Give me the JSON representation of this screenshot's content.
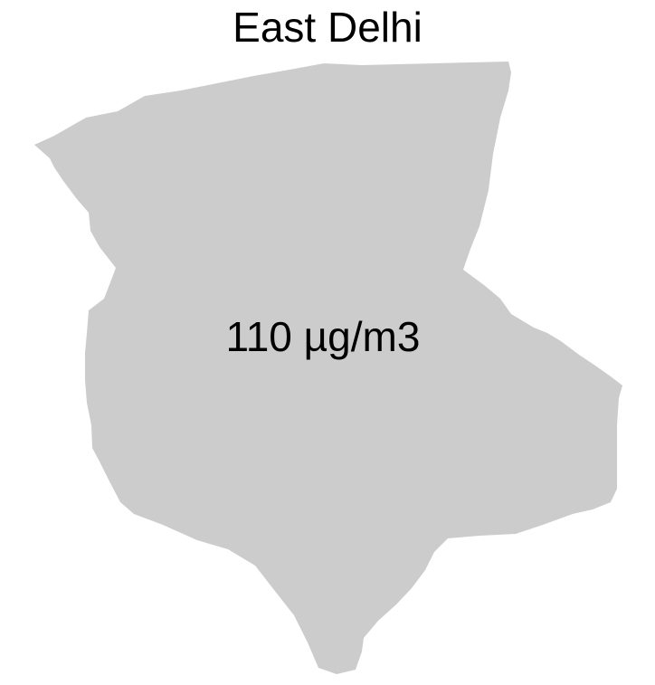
{
  "map": {
    "title": "East Delhi",
    "region_label": "110 µg/m3",
    "region_fill": "#cccccc",
    "background": "#ffffff"
  }
}
